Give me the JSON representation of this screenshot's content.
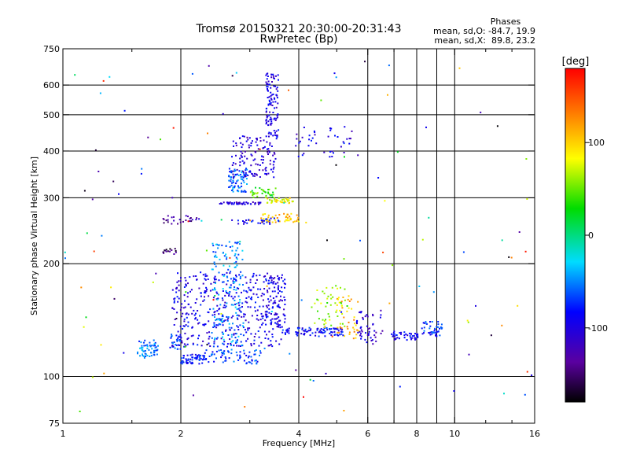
{
  "chart_data": {
    "type": "scatter",
    "title": "Tromsø 20150321 20:30:00-20:31:43",
    "subtitle": "RwPretec (Bp)",
    "xlabel": "Frequency [MHz]",
    "ylabel": "Stationary phase Virtual Height [km]",
    "x_scale": "log2",
    "y_scale": "log",
    "xlim": [
      1,
      16
    ],
    "ylim": [
      75,
      750
    ],
    "x_ticks": [
      1,
      2,
      4,
      6,
      8,
      10,
      16
    ],
    "x_tick_labels": [
      "1",
      "2",
      "4",
      "6",
      "8",
      "10",
      "16"
    ],
    "x_minor_ticks": [
      1.5,
      3,
      5,
      7,
      9,
      12,
      14
    ],
    "x_grid": [
      2,
      4,
      6,
      7,
      8,
      9,
      10
    ],
    "y_ticks": [
      75,
      100,
      200,
      300,
      400,
      500,
      600,
      750
    ],
    "y_tick_labels": [
      "75",
      "100",
      "200",
      "300",
      "400",
      "500",
      "600",
      "750"
    ],
    "y_grid": [
      100,
      200,
      300,
      400,
      500,
      600
    ],
    "grid": true,
    "annotation": {
      "heading": "Phases",
      "line1": "mean, sd,O: -84.7, 19.9",
      "line2": "mean, sd,X:  89.8, 23.2"
    },
    "colorbar": {
      "label": "[deg]",
      "range": [
        -180,
        180
      ],
      "ticks": [
        100,
        0,
        -100
      ],
      "tick_labels": [
        "100",
        "0",
        "-100"
      ],
      "colormap": "rainbow"
    },
    "clusters": [
      {
        "x": [
          1.55,
          1.75
        ],
        "y": [
          112,
          125
        ],
        "n": 60,
        "phase": -55
      },
      {
        "x": [
          1.85,
          2.0
        ],
        "y": [
          118,
          130
        ],
        "n": 25,
        "phase": -70
      },
      {
        "x": [
          2.0,
          2.3
        ],
        "y": [
          108,
          115
        ],
        "n": 60,
        "phase": -80
      },
      {
        "x": [
          2.3,
          3.2
        ],
        "y": [
          108,
          118
        ],
        "n": 70,
        "phase": -70
      },
      {
        "x": [
          1.9,
          3.7
        ],
        "y": [
          120,
          190
        ],
        "n": 420,
        "phase": -95
      },
      {
        "x": [
          2.4,
          2.9
        ],
        "y": [
          120,
          230
        ],
        "n": 160,
        "phase": -50
      },
      {
        "x": [
          3.6,
          5.2
        ],
        "y": [
          128,
          135
        ],
        "n": 90,
        "phase": -85
      },
      {
        "x": [
          3.3,
          3.7
        ],
        "y": [
          135,
          185
        ],
        "n": 70,
        "phase": -95
      },
      {
        "x": [
          4.3,
          5.4
        ],
        "y": [
          135,
          175
        ],
        "n": 50,
        "phase": 60
      },
      {
        "x": [
          5.0,
          5.7
        ],
        "y": [
          125,
          165
        ],
        "n": 40,
        "phase": 110
      },
      {
        "x": [
          5.6,
          6.6
        ],
        "y": [
          122,
          150
        ],
        "n": 50,
        "phase": -110
      },
      {
        "x": [
          6.9,
          8.1
        ],
        "y": [
          125,
          132
        ],
        "n": 45,
        "phase": -95
      },
      {
        "x": [
          8.2,
          9.3
        ],
        "y": [
          128,
          140
        ],
        "n": 45,
        "phase": -75
      },
      {
        "x": [
          2.5,
          3.2
        ],
        "y": [
          288,
          292
        ],
        "n": 45,
        "phase": -110
      },
      {
        "x": [
          3.3,
          3.9
        ],
        "y": [
          290,
          300
        ],
        "n": 40,
        "phase": 85
      },
      {
        "x": [
          3.2,
          4.0
        ],
        "y": [
          258,
          272
        ],
        "n": 45,
        "phase": 105
      },
      {
        "x": [
          2.7,
          3.6
        ],
        "y": [
          255,
          265
        ],
        "n": 30,
        "phase": -90
      },
      {
        "x": [
          2.65,
          2.95
        ],
        "y": [
          310,
          360
        ],
        "n": 80,
        "phase": -60
      },
      {
        "x": [
          2.7,
          3.5
        ],
        "y": [
          340,
          440
        ],
        "n": 120,
        "phase": -105
      },
      {
        "x": [
          3.3,
          3.55
        ],
        "y": [
          430,
          650
        ],
        "n": 110,
        "phase": -100
      },
      {
        "x": [
          3.0,
          3.5
        ],
        "y": [
          300,
          320
        ],
        "n": 35,
        "phase": 40
      },
      {
        "x": [
          1.8,
          2.2
        ],
        "y": [
          255,
          270
        ],
        "n": 25,
        "phase": -130
      },
      {
        "x": [
          1.8,
          1.95
        ],
        "y": [
          212,
          220
        ],
        "n": 15,
        "phase": -150
      },
      {
        "x": [
          3.9,
          5.5
        ],
        "y": [
          380,
          470
        ],
        "n": 40,
        "phase": -100
      },
      {
        "x": [
          1.0,
          16.0
        ],
        "y": [
          80,
          700
        ],
        "n": 130,
        "phase": 0
      }
    ]
  }
}
